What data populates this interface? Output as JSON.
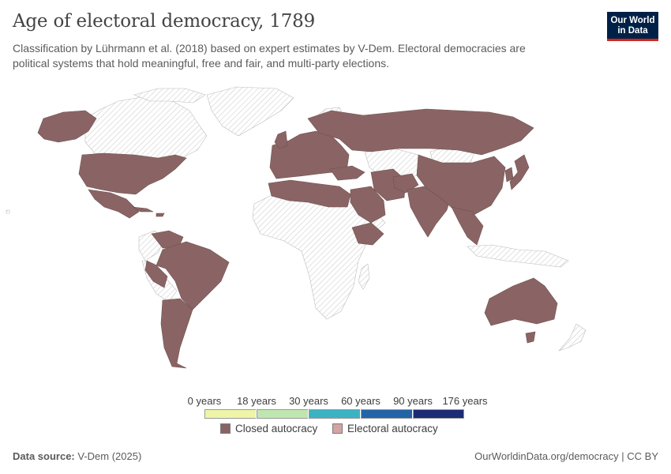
{
  "title": "Age of electoral democracy, 1789",
  "subtitle": "Classification by Lührmann et al. (2018) based on expert estimates by V-Dem. Electoral democracies are political systems that hold meaningful, free and fair, and multi-party elections.",
  "logo": {
    "line1": "Our World",
    "line2": "in Data"
  },
  "legend": {
    "ticks": [
      "0 years",
      "18 years",
      "30 years",
      "60 years",
      "90 years",
      "176 years"
    ],
    "bins": [
      {
        "color": "#eef5a8"
      },
      {
        "color": "#bfe6b0"
      },
      {
        "color": "#3bb3c3"
      },
      {
        "color": "#2363a8"
      },
      {
        "color": "#1b2b75"
      }
    ],
    "categories": [
      {
        "label": "Closed autocracy",
        "color": "#8a6464"
      },
      {
        "label": "Electoral autocracy",
        "color": "#d5a3a4"
      }
    ]
  },
  "map": {
    "year": 1789,
    "regions": [
      {
        "name": "Alaska",
        "category": "Closed autocracy"
      },
      {
        "name": "United States",
        "category": "Closed autocracy"
      },
      {
        "name": "Mexico",
        "category": "Closed autocracy"
      },
      {
        "name": "Cuba",
        "category": "Closed autocracy"
      },
      {
        "name": "Haiti",
        "category": "Closed autocracy"
      },
      {
        "name": "Venezuela",
        "category": "Closed autocracy"
      },
      {
        "name": "Brazil",
        "category": "Closed autocracy"
      },
      {
        "name": "Peru",
        "category": "Closed autocracy"
      },
      {
        "name": "Paraguay",
        "category": "Closed autocracy"
      },
      {
        "name": "Argentina",
        "category": "Closed autocracy"
      },
      {
        "name": "Europe",
        "category": "Closed autocracy"
      },
      {
        "name": "Russia",
        "category": "Closed autocracy"
      },
      {
        "name": "Turkey",
        "category": "Closed autocracy"
      },
      {
        "name": "Morocco",
        "category": "Closed autocracy"
      },
      {
        "name": "Algeria",
        "category": "Closed autocracy"
      },
      {
        "name": "Tunisia",
        "category": "Closed autocracy"
      },
      {
        "name": "Libya",
        "category": "Closed autocracy"
      },
      {
        "name": "Egypt",
        "category": "Closed autocracy"
      },
      {
        "name": "Ethiopia",
        "category": "Closed autocracy"
      },
      {
        "name": "Arabia",
        "category": "Closed autocracy"
      },
      {
        "name": "Iran",
        "category": "Closed autocracy"
      },
      {
        "name": "Afghanistan",
        "category": "Closed autocracy"
      },
      {
        "name": "India",
        "category": "Closed autocracy"
      },
      {
        "name": "China",
        "category": "Closed autocracy"
      },
      {
        "name": "Korea",
        "category": "Closed autocracy"
      },
      {
        "name": "Japan",
        "category": "Closed autocracy"
      },
      {
        "name": "Southeast Asia",
        "category": "Closed autocracy"
      },
      {
        "name": "Australia",
        "category": "Closed autocracy"
      },
      {
        "name": "Tasmania",
        "category": "Closed autocracy"
      }
    ]
  },
  "footer": {
    "source_label": "Data source:",
    "source": "V-Dem (2025)",
    "url": "OurWorldinData.org/democracy | CC BY"
  }
}
